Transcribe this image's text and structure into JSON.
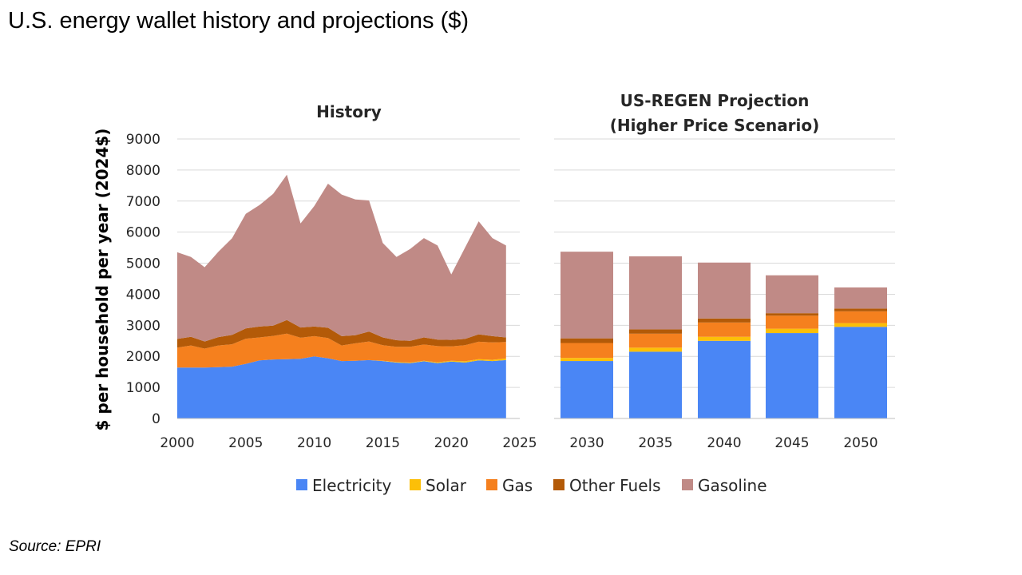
{
  "slide": {
    "title": "U.S. energy wallet history and projections ($)",
    "source": "Source: EPRI"
  },
  "chart_data": {
    "ylabel": "$ per household per year (2024$)",
    "ylim": [
      0,
      9000
    ],
    "yticks": [
      0,
      1000,
      2000,
      3000,
      4000,
      5000,
      6000,
      7000,
      8000,
      9000
    ],
    "grid": true,
    "legend_position": "bottom",
    "colors": {
      "Electricity": "#4a86f5",
      "Solar": "#fcbf08",
      "Gas": "#f5801e",
      "Other Fuels": "#b35a08",
      "Gasoline": "#c08a86"
    },
    "legend": [
      "Electricity",
      "Solar",
      "Gas",
      "Other Fuels",
      "Gasoline"
    ],
    "panels": [
      {
        "type": "area",
        "stacked": true,
        "title": "History",
        "xlim": [
          2000,
          2025
        ],
        "xticks": [
          2000,
          2005,
          2010,
          2015,
          2020,
          2025
        ],
        "x": [
          2000,
          2001,
          2002,
          2003,
          2004,
          2005,
          2006,
          2007,
          2008,
          2009,
          2010,
          2011,
          2012,
          2013,
          2014,
          2015,
          2016,
          2017,
          2018,
          2019,
          2020,
          2021,
          2022,
          2023,
          2024
        ],
        "series": [
          {
            "name": "Electricity",
            "values": [
              1640,
              1640,
              1640,
              1650,
              1670,
              1760,
              1870,
              1900,
              1910,
              1920,
              2000,
              1940,
              1850,
              1860,
              1880,
              1850,
              1800,
              1780,
              1840,
              1780,
              1830,
              1800,
              1870,
              1850,
              1880
            ]
          },
          {
            "name": "Solar",
            "values": [
              0,
              0,
              0,
              0,
              0,
              0,
              0,
              0,
              0,
              0,
              0,
              0,
              0,
              0,
              0,
              10,
              20,
              20,
              20,
              30,
              30,
              40,
              40,
              40,
              50
            ]
          },
          {
            "name": "Gas",
            "values": [
              640,
              710,
              610,
              700,
              720,
              810,
              740,
              760,
              820,
              680,
              650,
              650,
              500,
              560,
              600,
              500,
              490,
              510,
              520,
              520,
              460,
              520,
              560,
              560,
              530
            ]
          },
          {
            "name": "Other Fuels",
            "values": [
              280,
              280,
              230,
              270,
              300,
              330,
              350,
              330,
              440,
              330,
              310,
              330,
              300,
              260,
              320,
              250,
              210,
              190,
              230,
              210,
              210,
              200,
              240,
              200,
              150
            ]
          },
          {
            "name": "Gasoline",
            "values": [
              2790,
              2570,
              2390,
              2750,
              3110,
              3690,
              3910,
              4240,
              4680,
              3350,
              3880,
              4640,
              4560,
              4370,
              4220,
              3040,
              2680,
              2960,
              3200,
              3030,
              2110,
              2940,
              3640,
              3160,
              2960
            ]
          }
        ]
      },
      {
        "type": "bar",
        "stacked": true,
        "title": [
          "US-REGEN Projection",
          "(Higher Price Scenario)"
        ],
        "categories": [
          "2030",
          "2035",
          "2040",
          "2045",
          "2050"
        ],
        "series": [
          {
            "name": "Electricity",
            "values": [
              1850,
              2150,
              2500,
              2750,
              2950
            ]
          },
          {
            "name": "Solar",
            "values": [
              100,
              130,
              130,
              140,
              120
            ]
          },
          {
            "name": "Gas",
            "values": [
              480,
              450,
              460,
              420,
              380
            ]
          },
          {
            "name": "Other Fuels",
            "values": [
              150,
              140,
              130,
              80,
              90
            ]
          },
          {
            "name": "Gasoline",
            "values": [
              2790,
              2350,
              1800,
              1220,
              680
            ]
          }
        ]
      }
    ]
  }
}
